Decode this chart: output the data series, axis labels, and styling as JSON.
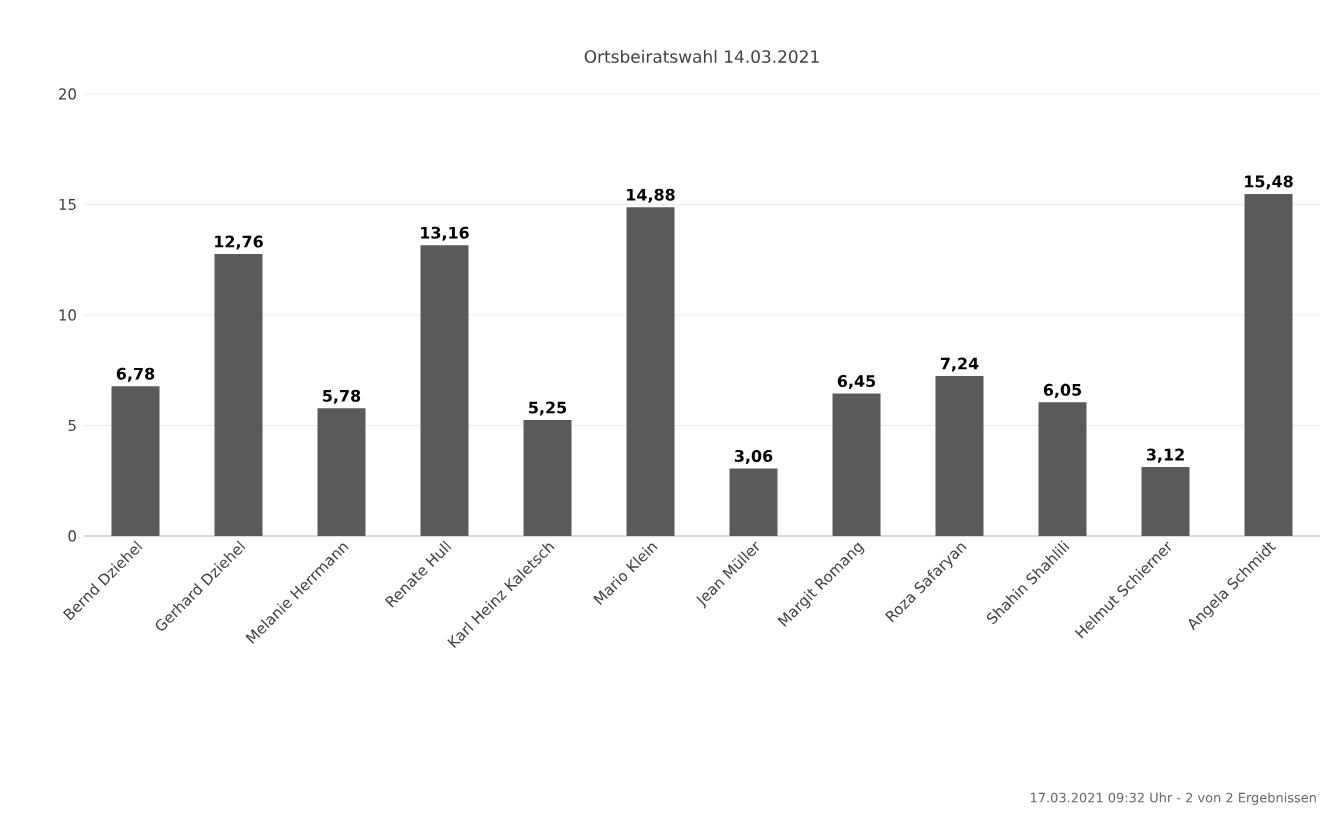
{
  "chart_data": {
    "type": "bar",
    "title": "Ortsbeiratswahl 14.03.2021",
    "categories": [
      "Bernd Dziehel",
      "Gerhard Dziehel",
      "Melanie Herrmann",
      "Renate Hull",
      "Karl Heinz Kaletsch",
      "Mario Klein",
      "Jean Müller",
      "Margit Romang",
      "Roza Safaryan",
      "Shahin Shahlili",
      "Helmut Schierner",
      "Angela Schmidt"
    ],
    "values": [
      6.78,
      12.76,
      5.78,
      13.16,
      5.25,
      14.88,
      3.06,
      6.45,
      7.24,
      6.05,
      3.12,
      15.48
    ],
    "value_labels": [
      "6,78",
      "12,76",
      "5,78",
      "13,16",
      "5,25",
      "14,88",
      "3,06",
      "6,45",
      "7,24",
      "6,05",
      "3,12",
      "15,48"
    ],
    "color": "#5a5a5a",
    "ylim": [
      0,
      20
    ],
    "yticks": [
      0,
      5,
      10,
      15,
      20
    ],
    "grid": "y",
    "annotations": [
      "17.03.2021 09:32 Uhr - 2 von 2 Ergebnissen"
    ]
  }
}
